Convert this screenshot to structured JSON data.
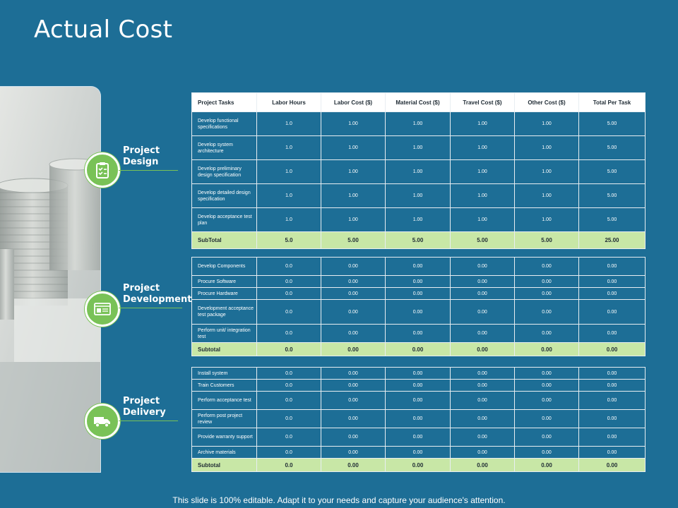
{
  "title": "Actual Cost",
  "footer": "This slide is 100% editable. Adapt it to your needs and capture your audience's attention.",
  "colors": {
    "background": "#1d6e96",
    "accent": "#79c257",
    "subtotal": "#c8e7a6"
  },
  "sections": [
    {
      "label_line1": "Project",
      "label_line2": "Design",
      "icon": "clipboard-checklist-icon"
    },
    {
      "label_line1": "Project",
      "label_line2": "Development",
      "icon": "browser-window-icon"
    },
    {
      "label_line1": "Project",
      "label_line2": "Delivery",
      "icon": "delivery-truck-icon"
    }
  ],
  "columns": [
    "Project Tasks",
    "Labor Hours",
    "Labor Cost ($)",
    "Material Cost ($)",
    "Travel Cost ($)",
    "Other Cost ($)",
    "Total Per Task"
  ],
  "tables": [
    {
      "rows": [
        [
          "Develop functional specifications",
          "1.0",
          "1.00",
          "1.00",
          "1.00",
          "1.00",
          "5.00"
        ],
        [
          "Develop system architecture",
          "1.0",
          "1.00",
          "1.00",
          "1.00",
          "1.00",
          "5.00"
        ],
        [
          "Develop preliminary design specification",
          "1.0",
          "1.00",
          "1.00",
          "1.00",
          "1.00",
          "5.00"
        ],
        [
          "Develop detailed design specification",
          "1.0",
          "1.00",
          "1.00",
          "1.00",
          "1.00",
          "5.00"
        ],
        [
          "Develop acceptance test plan",
          "1.0",
          "1.00",
          "1.00",
          "1.00",
          "1.00",
          "5.00"
        ]
      ],
      "subtotal": [
        "SubTotal",
        "5.0",
        "5.00",
        "5.00",
        "5.00",
        "5.00",
        "25.00"
      ]
    },
    {
      "rows": [
        [
          "Develop Components",
          "0.0",
          "0.00",
          "0.00",
          "0.00",
          "0.00",
          "0.00"
        ],
        [
          "Procure Software",
          "0.0",
          "0.00",
          "0.00",
          "0.00",
          "0.00",
          "0.00"
        ],
        [
          "Procure Hardware",
          "0.0",
          "0.00",
          "0.00",
          "0.00",
          "0.00",
          "0.00"
        ],
        [
          "Development acceptance test package",
          "0.0",
          "0.00",
          "0.00",
          "0.00",
          "0.00",
          "0.00"
        ],
        [
          "Perform unit/ integration test",
          "0.0",
          "0.00",
          "0.00",
          "0.00",
          "0.00",
          "0.00"
        ]
      ],
      "subtotal": [
        "Subtotal",
        "0.0",
        "0.00",
        "0.00",
        "0.00",
        "0.00",
        "0.00"
      ]
    },
    {
      "rows": [
        [
          "Install system",
          "0.0",
          "0.00",
          "0.00",
          "0.00",
          "0.00",
          "0.00"
        ],
        [
          "Train Customers",
          "0.0",
          "0.00",
          "0.00",
          "0.00",
          "0.00",
          "0.00"
        ],
        [
          "Perform acceptance test",
          "0.0",
          "0.00",
          "0.00",
          "0.00",
          "0.00",
          "0.00"
        ],
        [
          "Perform post project review",
          "0.0",
          "0.00",
          "0.00",
          "0.00",
          "0.00",
          "0.00"
        ],
        [
          "Provide warranty support",
          "0.0",
          "0.00",
          "0.00",
          "0.00",
          "0.00",
          "0.00"
        ],
        [
          "Archive materials",
          "0.0",
          "0.00",
          "0.00",
          "0.00",
          "0.00",
          "0.00"
        ]
      ],
      "subtotal": [
        "Subtotal",
        "0.0",
        "0.00",
        "0.00",
        "0.00",
        "0.00",
        "0.00"
      ]
    }
  ]
}
